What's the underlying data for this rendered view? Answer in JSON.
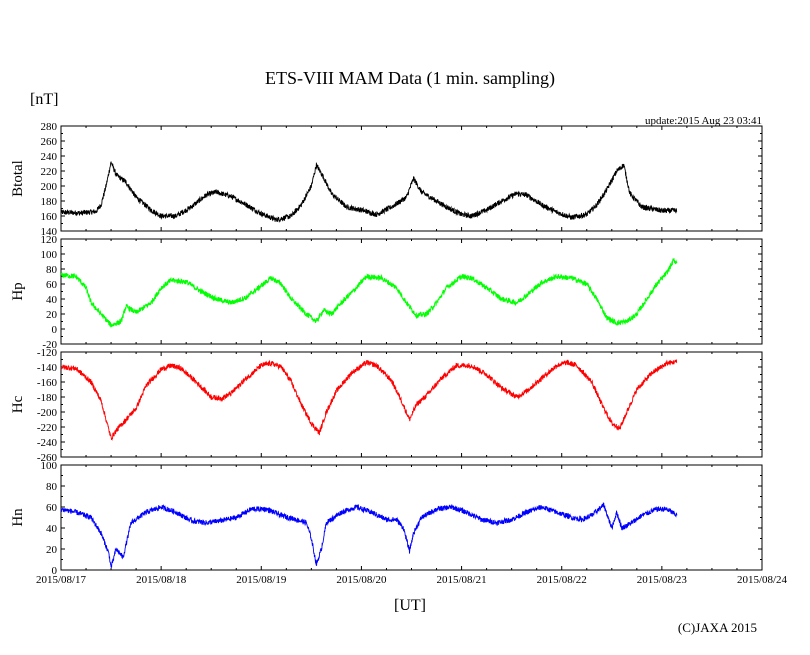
{
  "title": "ETS-VIII MAM Data (1 min. sampling)",
  "unit_label": "[nT]",
  "update_text": "update:2015 Aug 23 03:41",
  "xlabel": "[UT]",
  "copyright": "(C)JAXA 2015",
  "chart_data": {
    "type": "line",
    "title": "ETS-VIII MAM Data (1 min. sampling)",
    "xlabel": "[UT]",
    "x_tick_labels": [
      "2015/08/17",
      "2015/08/18",
      "2015/08/19",
      "2015/08/20",
      "2015/08/21",
      "2015/08/22",
      "2015/08/23",
      "2015/08/24"
    ],
    "x_range_days": [
      0,
      7
    ],
    "data_end_day": 6.15,
    "panels": [
      {
        "name": "Btotal",
        "ylabel": "Btotal",
        "color": "#000000",
        "ylim": [
          140,
          280
        ],
        "yticks": [
          "140",
          "160",
          "180",
          "200",
          "220",
          "240",
          "260",
          "280"
        ],
        "points": [
          [
            0,
            165
          ],
          [
            0.2,
            164
          ],
          [
            0.35,
            166
          ],
          [
            0.4,
            175
          ],
          [
            0.45,
            200
          ],
          [
            0.5,
            232
          ],
          [
            0.55,
            215
          ],
          [
            0.65,
            205
          ],
          [
            0.75,
            185
          ],
          [
            0.9,
            168
          ],
          [
            1.0,
            160
          ],
          [
            1.15,
            160
          ],
          [
            1.3,
            172
          ],
          [
            1.45,
            188
          ],
          [
            1.55,
            192
          ],
          [
            1.7,
            186
          ],
          [
            1.85,
            175
          ],
          [
            2.0,
            163
          ],
          [
            2.15,
            155
          ],
          [
            2.3,
            160
          ],
          [
            2.4,
            175
          ],
          [
            2.5,
            200
          ],
          [
            2.55,
            228
          ],
          [
            2.62,
            212
          ],
          [
            2.7,
            190
          ],
          [
            2.85,
            172
          ],
          [
            3.0,
            168
          ],
          [
            3.15,
            162
          ],
          [
            3.3,
            172
          ],
          [
            3.45,
            185
          ],
          [
            3.52,
            210
          ],
          [
            3.6,
            192
          ],
          [
            3.75,
            180
          ],
          [
            3.85,
            172
          ],
          [
            4.0,
            162
          ],
          [
            4.1,
            160
          ],
          [
            4.25,
            168
          ],
          [
            4.4,
            180
          ],
          [
            4.55,
            190
          ],
          [
            4.65,
            188
          ],
          [
            4.8,
            175
          ],
          [
            4.95,
            165
          ],
          [
            5.1,
            158
          ],
          [
            5.25,
            162
          ],
          [
            5.35,
            175
          ],
          [
            5.45,
            195
          ],
          [
            5.55,
            220
          ],
          [
            5.62,
            228
          ],
          [
            5.68,
            190
          ],
          [
            5.8,
            172
          ],
          [
            6.0,
            167
          ],
          [
            6.15,
            167
          ]
        ]
      },
      {
        "name": "Hp",
        "ylabel": "Hp",
        "color": "#00ff00",
        "ylim": [
          -20,
          120
        ],
        "yticks": [
          "-20",
          "0",
          "20",
          "40",
          "60",
          "80",
          "100",
          "120"
        ],
        "points": [
          [
            0,
            72
          ],
          [
            0.15,
            70
          ],
          [
            0.25,
            55
          ],
          [
            0.3,
            35
          ],
          [
            0.4,
            20
          ],
          [
            0.5,
            5
          ],
          [
            0.6,
            10
          ],
          [
            0.65,
            30
          ],
          [
            0.75,
            22
          ],
          [
            0.9,
            35
          ],
          [
            1.0,
            55
          ],
          [
            1.1,
            65
          ],
          [
            1.25,
            63
          ],
          [
            1.4,
            50
          ],
          [
            1.55,
            40
          ],
          [
            1.7,
            35
          ],
          [
            1.85,
            42
          ],
          [
            2.0,
            58
          ],
          [
            2.1,
            68
          ],
          [
            2.2,
            60
          ],
          [
            2.3,
            40
          ],
          [
            2.45,
            20
          ],
          [
            2.55,
            10
          ],
          [
            2.62,
            25
          ],
          [
            2.7,
            20
          ],
          [
            2.8,
            35
          ],
          [
            2.95,
            55
          ],
          [
            3.05,
            70
          ],
          [
            3.2,
            68
          ],
          [
            3.35,
            55
          ],
          [
            3.45,
            35
          ],
          [
            3.55,
            18
          ],
          [
            3.65,
            20
          ],
          [
            3.75,
            35
          ],
          [
            3.85,
            55
          ],
          [
            4.0,
            70
          ],
          [
            4.1,
            68
          ],
          [
            4.25,
            55
          ],
          [
            4.4,
            40
          ],
          [
            4.55,
            35
          ],
          [
            4.65,
            45
          ],
          [
            4.8,
            62
          ],
          [
            4.95,
            70
          ],
          [
            5.1,
            68
          ],
          [
            5.25,
            60
          ],
          [
            5.35,
            40
          ],
          [
            5.45,
            15
          ],
          [
            5.55,
            8
          ],
          [
            5.65,
            10
          ],
          [
            5.75,
            20
          ],
          [
            5.85,
            40
          ],
          [
            5.95,
            60
          ],
          [
            6.05,
            75
          ],
          [
            6.12,
            92
          ],
          [
            6.15,
            88
          ]
        ]
      },
      {
        "name": "Hc",
        "ylabel": "Hc",
        "color": "#ff0000",
        "ylim": [
          -260,
          -120
        ],
        "yticks": [
          "-260",
          "-240",
          "-220",
          "-200",
          "-180",
          "-160",
          "-140",
          "-120"
        ],
        "points": [
          [
            0,
            -140
          ],
          [
            0.15,
            -142
          ],
          [
            0.3,
            -160
          ],
          [
            0.4,
            -185
          ],
          [
            0.45,
            -210
          ],
          [
            0.5,
            -235
          ],
          [
            0.55,
            -225
          ],
          [
            0.65,
            -210
          ],
          [
            0.75,
            -195
          ],
          [
            0.85,
            -165
          ],
          [
            1.0,
            -143
          ],
          [
            1.1,
            -138
          ],
          [
            1.2,
            -142
          ],
          [
            1.35,
            -160
          ],
          [
            1.5,
            -180
          ],
          [
            1.6,
            -182
          ],
          [
            1.7,
            -175
          ],
          [
            1.85,
            -155
          ],
          [
            2.0,
            -138
          ],
          [
            2.1,
            -135
          ],
          [
            2.2,
            -140
          ],
          [
            2.3,
            -160
          ],
          [
            2.4,
            -190
          ],
          [
            2.5,
            -215
          ],
          [
            2.58,
            -228
          ],
          [
            2.65,
            -200
          ],
          [
            2.75,
            -172
          ],
          [
            2.9,
            -148
          ],
          [
            3.05,
            -134
          ],
          [
            3.15,
            -138
          ],
          [
            3.3,
            -158
          ],
          [
            3.4,
            -185
          ],
          [
            3.48,
            -210
          ],
          [
            3.55,
            -190
          ],
          [
            3.65,
            -178
          ],
          [
            3.8,
            -155
          ],
          [
            3.95,
            -138
          ],
          [
            4.1,
            -138
          ],
          [
            4.25,
            -150
          ],
          [
            4.4,
            -168
          ],
          [
            4.55,
            -180
          ],
          [
            4.65,
            -172
          ],
          [
            4.8,
            -155
          ],
          [
            4.95,
            -138
          ],
          [
            5.05,
            -134
          ],
          [
            5.15,
            -138
          ],
          [
            5.3,
            -160
          ],
          [
            5.4,
            -190
          ],
          [
            5.5,
            -215
          ],
          [
            5.58,
            -222
          ],
          [
            5.65,
            -200
          ],
          [
            5.75,
            -170
          ],
          [
            5.9,
            -148
          ],
          [
            6.05,
            -135
          ],
          [
            6.15,
            -133
          ]
        ]
      },
      {
        "name": "Hn",
        "ylabel": "Hn",
        "color": "#0000ff",
        "ylim": [
          0,
          100
        ],
        "yticks": [
          "0",
          "20",
          "40",
          "60",
          "80",
          "100"
        ],
        "points": [
          [
            0,
            58
          ],
          [
            0.15,
            55
          ],
          [
            0.3,
            50
          ],
          [
            0.4,
            35
          ],
          [
            0.48,
            15
          ],
          [
            0.5,
            2
          ],
          [
            0.55,
            20
          ],
          [
            0.62,
            12
          ],
          [
            0.7,
            45
          ],
          [
            0.85,
            55
          ],
          [
            1.0,
            60
          ],
          [
            1.15,
            55
          ],
          [
            1.3,
            47
          ],
          [
            1.45,
            45
          ],
          [
            1.6,
            47
          ],
          [
            1.75,
            50
          ],
          [
            1.9,
            58
          ],
          [
            2.05,
            58
          ],
          [
            2.2,
            52
          ],
          [
            2.35,
            48
          ],
          [
            2.45,
            45
          ],
          [
            2.5,
            30
          ],
          [
            2.55,
            5
          ],
          [
            2.6,
            20
          ],
          [
            2.65,
            45
          ],
          [
            2.8,
            55
          ],
          [
            2.95,
            60
          ],
          [
            3.1,
            55
          ],
          [
            3.25,
            48
          ],
          [
            3.35,
            48
          ],
          [
            3.42,
            40
          ],
          [
            3.48,
            18
          ],
          [
            3.52,
            35
          ],
          [
            3.6,
            50
          ],
          [
            3.75,
            58
          ],
          [
            3.9,
            60
          ],
          [
            4.05,
            55
          ],
          [
            4.2,
            48
          ],
          [
            4.35,
            45
          ],
          [
            4.5,
            48
          ],
          [
            4.65,
            55
          ],
          [
            4.8,
            60
          ],
          [
            4.95,
            55
          ],
          [
            5.1,
            50
          ],
          [
            5.2,
            48
          ],
          [
            5.3,
            52
          ],
          [
            5.42,
            62
          ],
          [
            5.5,
            40
          ],
          [
            5.55,
            55
          ],
          [
            5.6,
            40
          ],
          [
            5.7,
            45
          ],
          [
            5.8,
            52
          ],
          [
            5.95,
            58
          ],
          [
            6.05,
            58
          ],
          [
            6.15,
            52
          ]
        ]
      }
    ]
  }
}
